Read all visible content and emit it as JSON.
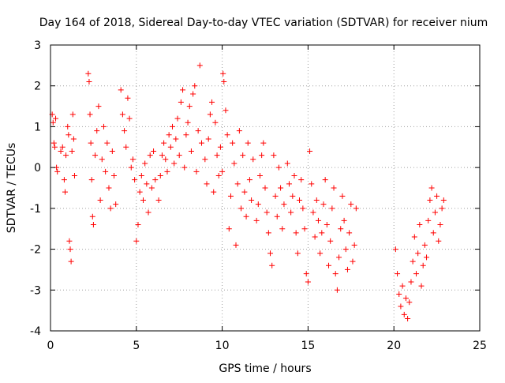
{
  "chart_data": {
    "type": "scatter",
    "title": "Day 164 of 2018, Sidereal Day-to-day VTEC variation (SDTVAR) for receiver nium",
    "xlabel": "GPS time / hours",
    "ylabel": "SDTVAR / TECUs",
    "xlim": [
      0,
      25
    ],
    "ylim": [
      -4,
      3
    ],
    "xticks": [
      0,
      5,
      10,
      15,
      20,
      25
    ],
    "yticks": [
      -4,
      -3,
      -2,
      -1,
      0,
      1,
      2,
      3
    ],
    "xtick_labels": [
      "0",
      "5",
      "10",
      "15",
      "20",
      "25"
    ],
    "ytick_labels": [
      "-4",
      "-3",
      "-2",
      "-1",
      "0",
      "1",
      "2",
      "3"
    ],
    "grid": true,
    "marker": "+",
    "color": "#ff0000",
    "series": [
      {
        "name": "SDTVAR",
        "points": [
          [
            0.1,
            1.3
          ],
          [
            0.15,
            1.1
          ],
          [
            0.2,
            0.6
          ],
          [
            0.25,
            0.5
          ],
          [
            0.3,
            1.2
          ],
          [
            0.35,
            0.0
          ],
          [
            0.4,
            -0.1
          ],
          [
            0.6,
            0.4
          ],
          [
            0.7,
            0.5
          ],
          [
            0.8,
            -0.3
          ],
          [
            0.85,
            -0.6
          ],
          [
            0.9,
            0.3
          ],
          [
            1.0,
            1.0
          ],
          [
            1.05,
            0.8
          ],
          [
            1.1,
            -1.8
          ],
          [
            1.15,
            -2.0
          ],
          [
            1.2,
            -2.3
          ],
          [
            1.25,
            0.4
          ],
          [
            1.3,
            1.3
          ],
          [
            1.35,
            0.7
          ],
          [
            1.4,
            -0.2
          ],
          [
            2.2,
            2.3
          ],
          [
            2.25,
            2.1
          ],
          [
            2.3,
            1.3
          ],
          [
            2.35,
            0.6
          ],
          [
            2.4,
            -0.3
          ],
          [
            2.45,
            -1.2
          ],
          [
            2.5,
            -1.4
          ],
          [
            2.6,
            0.3
          ],
          [
            2.7,
            0.9
          ],
          [
            2.8,
            1.5
          ],
          [
            2.9,
            -0.8
          ],
          [
            3.0,
            0.2
          ],
          [
            3.1,
            1.0
          ],
          [
            3.2,
            -0.1
          ],
          [
            3.3,
            0.6
          ],
          [
            3.4,
            -0.5
          ],
          [
            3.5,
            -1.0
          ],
          [
            3.6,
            0.4
          ],
          [
            3.7,
            -0.2
          ],
          [
            3.8,
            -0.9
          ],
          [
            4.1,
            1.9
          ],
          [
            4.2,
            1.3
          ],
          [
            4.3,
            0.9
          ],
          [
            4.4,
            0.5
          ],
          [
            4.5,
            1.7
          ],
          [
            4.6,
            1.2
          ],
          [
            4.7,
            0.0
          ],
          [
            4.8,
            0.2
          ],
          [
            4.9,
            -0.3
          ],
          [
            5.0,
            -1.8
          ],
          [
            5.1,
            -1.4
          ],
          [
            5.2,
            -0.6
          ],
          [
            5.3,
            -0.2
          ],
          [
            5.4,
            -0.8
          ],
          [
            5.5,
            0.1
          ],
          [
            5.6,
            -0.4
          ],
          [
            5.7,
            -1.1
          ],
          [
            5.8,
            0.3
          ],
          [
            5.9,
            -0.5
          ],
          [
            6.0,
            0.4
          ],
          [
            6.1,
            -0.3
          ],
          [
            6.3,
            -0.8
          ],
          [
            6.4,
            -0.2
          ],
          [
            6.5,
            0.3
          ],
          [
            6.6,
            0.6
          ],
          [
            6.7,
            0.2
          ],
          [
            6.8,
            -0.1
          ],
          [
            6.9,
            0.8
          ],
          [
            7.0,
            0.5
          ],
          [
            7.1,
            1.0
          ],
          [
            7.2,
            0.1
          ],
          [
            7.3,
            0.7
          ],
          [
            7.4,
            1.2
          ],
          [
            7.5,
            0.3
          ],
          [
            7.6,
            1.6
          ],
          [
            7.7,
            1.9
          ],
          [
            7.8,
            0.0
          ],
          [
            7.9,
            0.8
          ],
          [
            8.0,
            1.1
          ],
          [
            8.1,
            1.5
          ],
          [
            8.2,
            0.4
          ],
          [
            8.3,
            1.8
          ],
          [
            8.4,
            2.0
          ],
          [
            8.5,
            -0.1
          ],
          [
            8.6,
            0.9
          ],
          [
            8.7,
            2.5
          ],
          [
            8.8,
            0.6
          ],
          [
            9.0,
            0.2
          ],
          [
            9.1,
            -0.4
          ],
          [
            9.2,
            0.7
          ],
          [
            9.3,
            1.3
          ],
          [
            9.4,
            1.6
          ],
          [
            9.5,
            -0.6
          ],
          [
            9.6,
            1.1
          ],
          [
            9.7,
            0.3
          ],
          [
            9.8,
            -0.2
          ],
          [
            9.9,
            0.5
          ],
          [
            10.0,
            -0.1
          ],
          [
            10.05,
            2.3
          ],
          [
            10.1,
            2.1
          ],
          [
            10.2,
            1.4
          ],
          [
            10.3,
            0.8
          ],
          [
            10.4,
            -1.5
          ],
          [
            10.5,
            -0.7
          ],
          [
            10.6,
            0.6
          ],
          [
            10.7,
            0.1
          ],
          [
            10.8,
            -1.9
          ],
          [
            10.9,
            -0.4
          ],
          [
            11.0,
            0.9
          ],
          [
            11.1,
            -1.0
          ],
          [
            11.2,
            0.3
          ],
          [
            11.3,
            -0.6
          ],
          [
            11.4,
            -1.2
          ],
          [
            11.5,
            0.6
          ],
          [
            11.6,
            -0.3
          ],
          [
            11.7,
            -0.8
          ],
          [
            11.8,
            0.2
          ],
          [
            12.0,
            -1.3
          ],
          [
            12.1,
            -0.9
          ],
          [
            12.2,
            -0.2
          ],
          [
            12.3,
            0.3
          ],
          [
            12.4,
            0.6
          ],
          [
            12.5,
            -0.5
          ],
          [
            12.6,
            -1.1
          ],
          [
            12.7,
            -1.6
          ],
          [
            12.8,
            -2.1
          ],
          [
            12.9,
            -2.4
          ],
          [
            13.0,
            0.3
          ],
          [
            13.1,
            -0.7
          ],
          [
            13.2,
            -1.2
          ],
          [
            13.3,
            0.0
          ],
          [
            13.4,
            -0.5
          ],
          [
            13.5,
            -1.5
          ],
          [
            13.6,
            -0.9
          ],
          [
            13.8,
            0.1
          ],
          [
            13.9,
            -0.4
          ],
          [
            14.0,
            -1.1
          ],
          [
            14.1,
            -0.7
          ],
          [
            14.2,
            -0.2
          ],
          [
            14.3,
            -1.6
          ],
          [
            14.4,
            -2.1
          ],
          [
            14.5,
            -0.8
          ],
          [
            14.6,
            -0.3
          ],
          [
            14.7,
            -1.0
          ],
          [
            14.8,
            -1.5
          ],
          [
            14.9,
            -2.6
          ],
          [
            15.0,
            -2.8
          ],
          [
            15.1,
            0.4
          ],
          [
            15.2,
            -0.4
          ],
          [
            15.3,
            -1.1
          ],
          [
            15.4,
            -1.7
          ],
          [
            15.5,
            -0.8
          ],
          [
            15.6,
            -1.3
          ],
          [
            15.7,
            -2.1
          ],
          [
            15.8,
            -1.6
          ],
          [
            15.9,
            -0.9
          ],
          [
            16.0,
            -0.3
          ],
          [
            16.1,
            -1.4
          ],
          [
            16.2,
            -2.4
          ],
          [
            16.3,
            -1.8
          ],
          [
            16.4,
            -1.0
          ],
          [
            16.5,
            -0.5
          ],
          [
            16.6,
            -2.6
          ],
          [
            16.7,
            -3.0
          ],
          [
            16.8,
            -2.2
          ],
          [
            16.9,
            -1.5
          ],
          [
            17.0,
            -0.7
          ],
          [
            17.1,
            -1.3
          ],
          [
            17.2,
            -2.0
          ],
          [
            17.3,
            -2.5
          ],
          [
            17.4,
            -1.6
          ],
          [
            17.5,
            -0.9
          ],
          [
            17.6,
            -2.3
          ],
          [
            17.7,
            -1.9
          ],
          [
            17.8,
            -1.0
          ],
          [
            20.1,
            -2.0
          ],
          [
            20.2,
            -2.6
          ],
          [
            20.3,
            -3.1
          ],
          [
            20.4,
            -3.4
          ],
          [
            20.5,
            -2.9
          ],
          [
            20.6,
            -3.6
          ],
          [
            20.7,
            -3.2
          ],
          [
            20.8,
            -3.7
          ],
          [
            20.9,
            -3.3
          ],
          [
            21.0,
            -2.8
          ],
          [
            21.1,
            -2.3
          ],
          [
            21.2,
            -1.7
          ],
          [
            21.3,
            -2.6
          ],
          [
            21.4,
            -2.1
          ],
          [
            21.5,
            -1.4
          ],
          [
            21.6,
            -2.9
          ],
          [
            21.7,
            -2.4
          ],
          [
            21.8,
            -1.9
          ],
          [
            21.9,
            -2.2
          ],
          [
            22.0,
            -1.3
          ],
          [
            22.1,
            -0.8
          ],
          [
            22.2,
            -0.5
          ],
          [
            22.3,
            -1.6
          ],
          [
            22.4,
            -1.1
          ],
          [
            22.5,
            -0.7
          ],
          [
            22.6,
            -1.8
          ],
          [
            22.7,
            -1.4
          ],
          [
            22.8,
            -1.0
          ],
          [
            22.9,
            -0.8
          ]
        ]
      }
    ]
  }
}
